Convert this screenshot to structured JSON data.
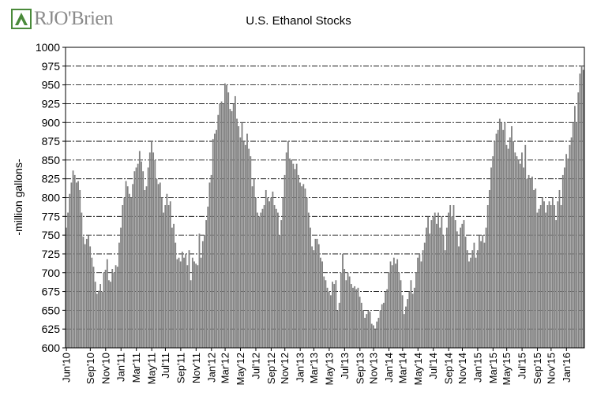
{
  "brand": {
    "logo_text": "RJO'Brien",
    "mark_color": "#4a8a3a"
  },
  "chart_data": {
    "type": "bar",
    "title": "U.S. Ethanol Stocks",
    "xlabel": "",
    "ylabel": "-million gallons-",
    "ylim": [
      600,
      1000
    ],
    "yticks": [
      600,
      625,
      650,
      675,
      700,
      725,
      750,
      775,
      800,
      825,
      850,
      875,
      900,
      925,
      950,
      975,
      1000
    ],
    "grid": "horizontal dash-dot",
    "bar_color": "#808080",
    "x_tick_labels": [
      "Jun'10",
      "Sep'10",
      "Nov'10",
      "Jan'11",
      "Mar'11",
      "May'11",
      "Jul'11",
      "Sep'11",
      "Nov'11",
      "Jan'12",
      "Mar'12",
      "May'12",
      "Jul'12",
      "Sep'12",
      "Nov'12",
      "Jan'13",
      "Mar'13",
      "May'13",
      "Jul'13",
      "Sep'13",
      "Nov'13",
      "Jan'14",
      "Mar'14",
      "May'14",
      "Jul'14",
      "Sep'14",
      "Nov'14",
      "Jan'15",
      "Mar'15",
      "May'15",
      "Jul'15",
      "Sep'15",
      "Nov'15",
      "Jan'16"
    ],
    "x_tick_weeks": [
      0,
      14,
      23,
      32,
      41,
      50,
      58,
      67,
      76,
      85,
      93,
      102,
      111,
      120,
      128,
      137,
      145,
      154,
      163,
      172,
      180,
      189,
      197,
      206,
      215,
      224,
      232,
      241,
      250,
      258,
      267,
      276,
      284,
      293
    ],
    "values": [
      760,
      780,
      805,
      820,
      836,
      830,
      820,
      822,
      810,
      780,
      748,
      738,
      745,
      750,
      735,
      720,
      708,
      688,
      672,
      676,
      685,
      675,
      700,
      704,
      718,
      690,
      688,
      705,
      700,
      710,
      708,
      740,
      760,
      790,
      800,
      822,
      815,
      805,
      800,
      818,
      835,
      840,
      845,
      862,
      848,
      835,
      810,
      815,
      840,
      860,
      875,
      860,
      850,
      825,
      818,
      820,
      800,
      780,
      790,
      805,
      790,
      795,
      760,
      765,
      740,
      718,
      720,
      715,
      728,
      720,
      725,
      710,
      730,
      690,
      720,
      715,
      712,
      710,
      752,
      720,
      742,
      750,
      770,
      788,
      820,
      830,
      878,
      885,
      890,
      910,
      925,
      928,
      925,
      952,
      950,
      940,
      918,
      915,
      925,
      935,
      905,
      895,
      880,
      900,
      875,
      870,
      885,
      865,
      855,
      815,
      825,
      800,
      780,
      775,
      780,
      785,
      790,
      810,
      800,
      795,
      800,
      808,
      790,
      785,
      780,
      750,
      770,
      800,
      830,
      860,
      875,
      852,
      850,
      845,
      838,
      845,
      830,
      820,
      815,
      818,
      812,
      800,
      780,
      760,
      735,
      730,
      745,
      745,
      738,
      720,
      715,
      695,
      690,
      680,
      675,
      670,
      688,
      685,
      690,
      650,
      660,
      700,
      725,
      705,
      690,
      700,
      695,
      685,
      680,
      682,
      678,
      680,
      668,
      660,
      650,
      640,
      645,
      650,
      648,
      632,
      630,
      625,
      635,
      640,
      650,
      658,
      660,
      675,
      678,
      700,
      715,
      710,
      720,
      712,
      718,
      700,
      690,
      670,
      645,
      655,
      665,
      675,
      690,
      672,
      680,
      700,
      720,
      725,
      715,
      730,
      740,
      760,
      775,
      752,
      770,
      775,
      780,
      765,
      780,
      760,
      775,
      750,
      730,
      760,
      780,
      790,
      775,
      790,
      770,
      755,
      735,
      760,
      765,
      770,
      748,
      730,
      715,
      720,
      730,
      740,
      720,
      730,
      750,
      742,
      750,
      740,
      760,
      790,
      810,
      840,
      855,
      875,
      885,
      890,
      905,
      900,
      890,
      900,
      870,
      865,
      880,
      895,
      875,
      860,
      855,
      850,
      845,
      860,
      840,
      870,
      825,
      830,
      825,
      828,
      810,
      812,
      780,
      785,
      790,
      800,
      795,
      780,
      790,
      795,
      790,
      800,
      790,
      770,
      795,
      810,
      790,
      830,
      840,
      858,
      852,
      870,
      880,
      900,
      922,
      900,
      940,
      965,
      975,
      970
    ]
  }
}
